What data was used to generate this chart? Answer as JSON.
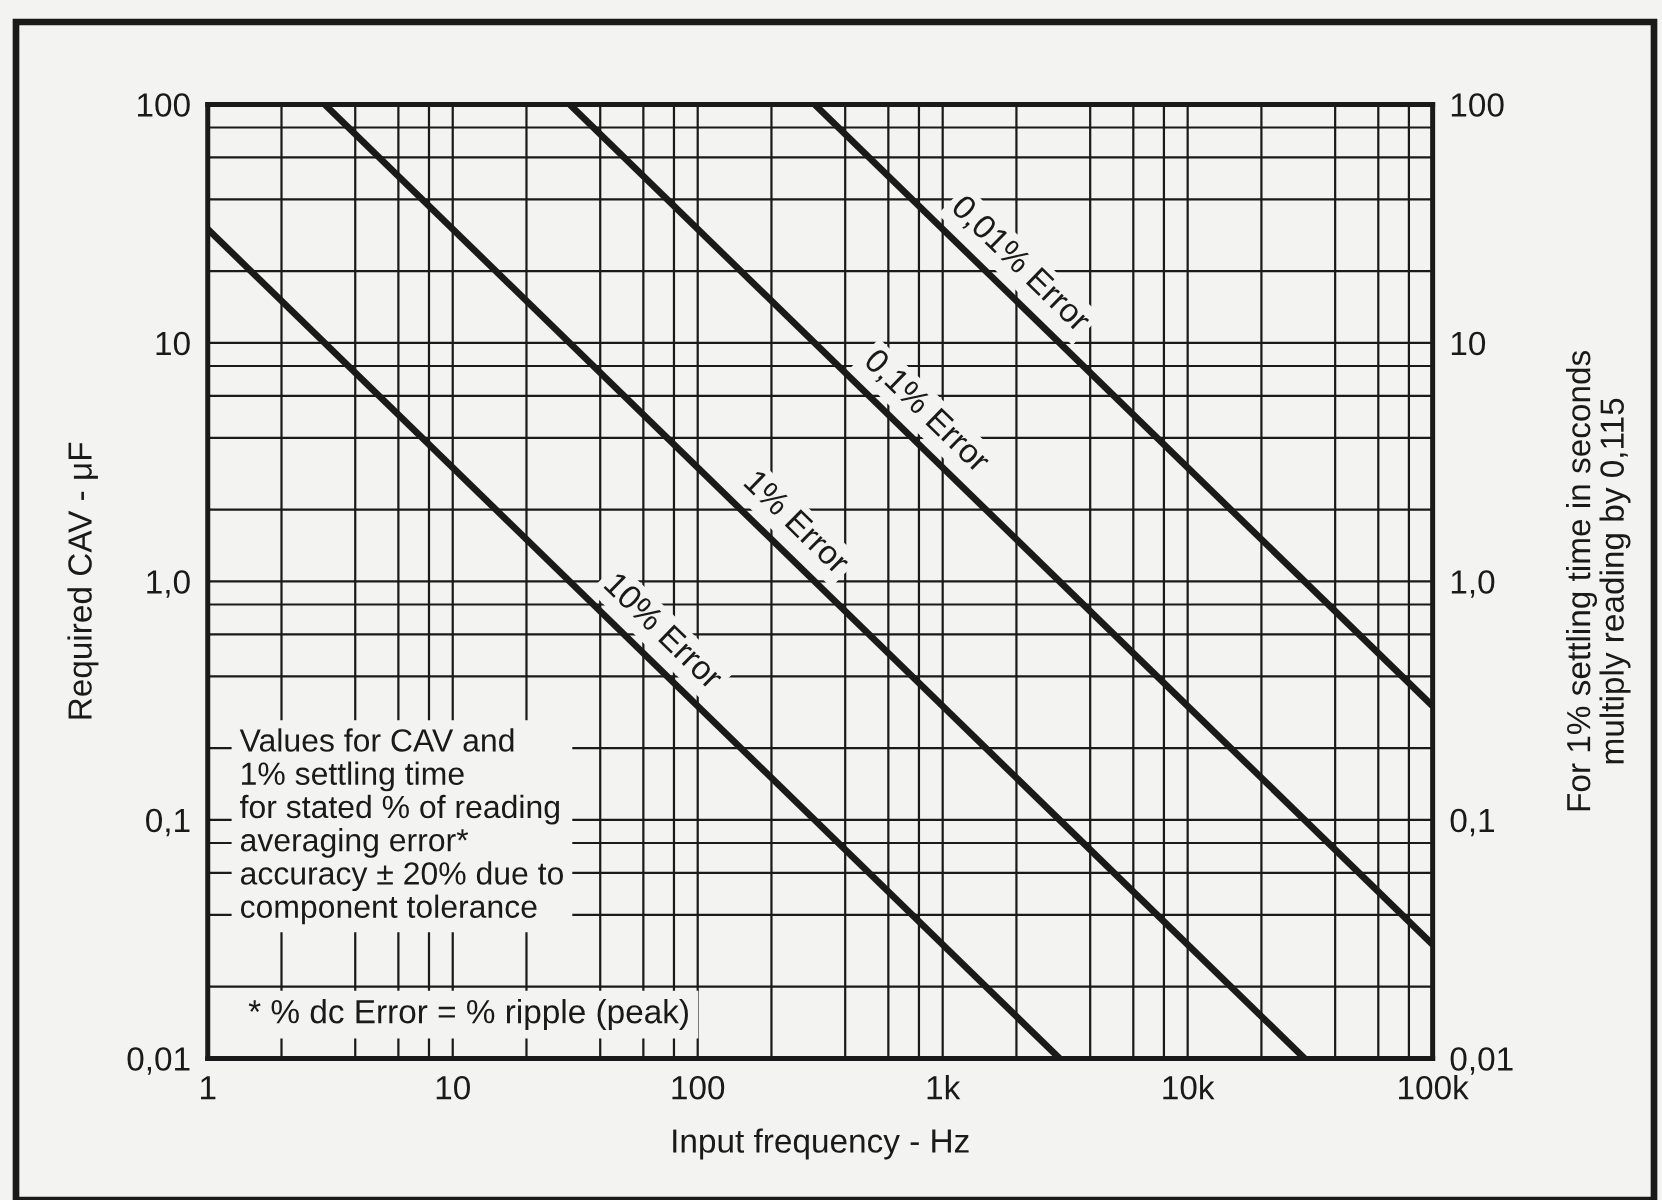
{
  "chart_data": {
    "type": "line",
    "xlabel": "Input frequency - Hz",
    "ylabel": "Required CAV - μF",
    "y2label": "For 1% settling time in seconds\nmultiply reading by 0,115",
    "log": "xy",
    "xlim": [
      1,
      100000
    ],
    "ylim": [
      0.01,
      100
    ],
    "xticks": [
      1,
      {
        "value": 2,
        "label": null
      },
      {
        "value": 4,
        "label": null
      },
      {
        "value": 6,
        "label": null
      },
      {
        "value": 8,
        "label": null
      },
      10,
      {
        "value": 20,
        "label": null
      },
      {
        "value": 40,
        "label": null
      },
      {
        "value": 60,
        "label": null
      },
      {
        "value": 80,
        "label": null
      },
      100,
      {
        "value": 200,
        "label": null
      },
      {
        "value": 400,
        "label": null
      },
      {
        "value": 600,
        "label": null
      },
      {
        "value": 800,
        "label": null
      },
      {
        "value": 1000,
        "label": "1k"
      },
      {
        "value": 2000,
        "label": null
      },
      {
        "value": 4000,
        "label": null
      },
      {
        "value": 6000,
        "label": null
      },
      {
        "value": 8000,
        "label": null
      },
      {
        "value": 10000,
        "label": "10k"
      },
      {
        "value": 20000,
        "label": null
      },
      {
        "value": 40000,
        "label": null
      },
      {
        "value": 60000,
        "label": null
      },
      {
        "value": 80000,
        "label": null
      },
      {
        "value": 100000,
        "label": "100k"
      }
    ],
    "yticks": [
      {
        "value": 0.01,
        "label": "0,01"
      },
      {
        "value": 0.02,
        "label": null
      },
      {
        "value": 0.04,
        "label": null
      },
      {
        "value": 0.06,
        "label": null
      },
      {
        "value": 0.08,
        "label": null
      },
      {
        "value": 0.1,
        "label": "0,1"
      },
      {
        "value": 0.2,
        "label": null
      },
      {
        "value": 0.4,
        "label": null
      },
      {
        "value": 0.6,
        "label": null
      },
      {
        "value": 0.8,
        "label": null
      },
      {
        "value": 1,
        "label": "1,0"
      },
      {
        "value": 2,
        "label": null
      },
      {
        "value": 4,
        "label": null
      },
      {
        "value": 6,
        "label": null
      },
      {
        "value": 8,
        "label": null
      },
      {
        "value": 10,
        "label": "10"
      },
      {
        "value": 20,
        "label": null
      },
      {
        "value": 40,
        "label": null
      },
      {
        "value": 60,
        "label": null
      },
      {
        "value": 80,
        "label": null
      },
      {
        "value": 100,
        "label": "100"
      }
    ],
    "grid": true,
    "line_style": "solid",
    "series": [
      {
        "name": "10% Error",
        "color": "#1a1a1a",
        "x": [
          1,
          3000
        ],
        "values": [
          30,
          0.01
        ]
      },
      {
        "name": "1% Error",
        "color": "#1a1a1a",
        "x": [
          3,
          30000
        ],
        "values": [
          100,
          0.01
        ]
      },
      {
        "name": "0,1% Error",
        "color": "#1a1a1a",
        "x": [
          30,
          100000
        ],
        "values": [
          100,
          0.03
        ]
      },
      {
        "name": "0,01% Error",
        "color": "#1a1a1a",
        "x": [
          300,
          100000
        ],
        "values": [
          100,
          0.3
        ]
      }
    ],
    "annotations": [
      "Values for CAV and\n1% settling time\nfor stated % of reading\naveraging error*\naccuracy ± 20% due to\ncomponent tolerance",
      "* % dc Error = % ripple (peak)"
    ]
  }
}
